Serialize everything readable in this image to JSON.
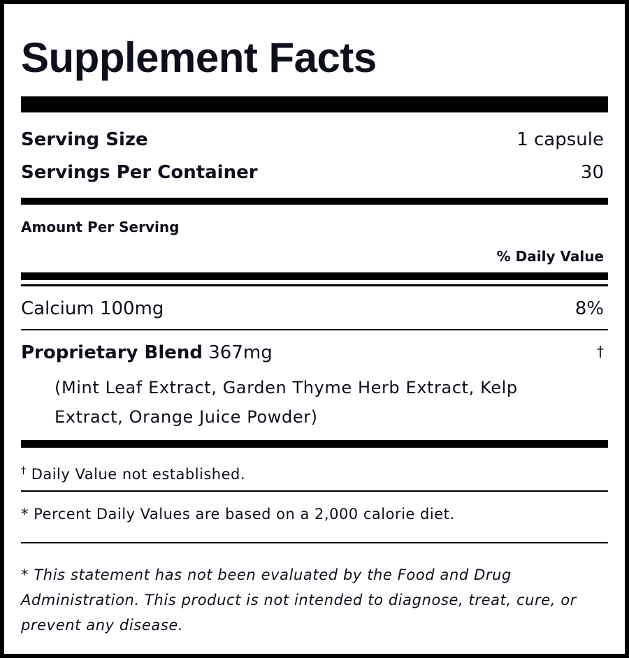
{
  "title": "Supplement Facts",
  "serving_size": {
    "label": "Serving Size",
    "value": "1 capsule"
  },
  "servings_per_container": {
    "label": "Servings Per Container",
    "value": "30"
  },
  "amount_per_serving": "Amount Per Serving",
  "daily_value_header": "% Daily Value",
  "nutrients": [
    {
      "name": "Calcium",
      "amount": "100mg",
      "daily_value": "8%"
    }
  ],
  "blend": {
    "name": "Proprietary Blend",
    "amount": "367mg",
    "daily_value": "†",
    "ingredients": "(Mint Leaf Extract, Garden Thyme Herb Extract, Kelp Extract, Orange Juice Powder)"
  },
  "footnotes": {
    "dagger_symbol": "†",
    "dagger_note": "Daily Value not established.",
    "percent_note": "* Percent Daily Values are based on a 2,000 calorie diet.",
    "disclaimer": "* This statement has not been evaluated by the Food and Drug Administration. This product is not intended to diagnose, treat, cure, or prevent any disease."
  }
}
